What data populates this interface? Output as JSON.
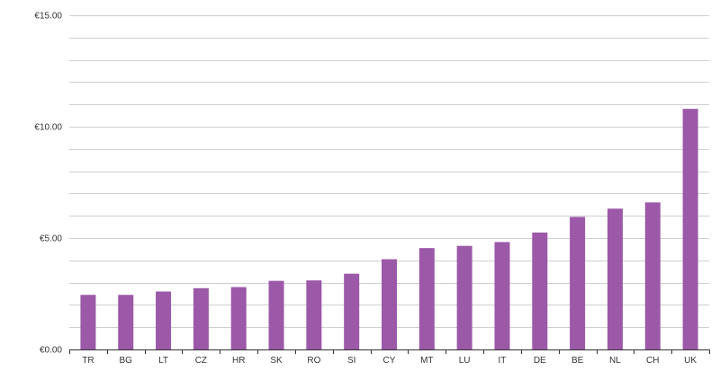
{
  "chart_data": {
    "type": "bar",
    "categories": [
      "TR",
      "BG",
      "LT",
      "CZ",
      "HR",
      "SK",
      "RO",
      "SI",
      "CY",
      "MT",
      "LU",
      "IT",
      "DE",
      "BE",
      "NL",
      "CH",
      "UK"
    ],
    "series": [
      {
        "values": [
          2.45,
          2.45,
          2.6,
          2.75,
          2.8,
          3.08,
          3.1,
          3.4,
          4.05,
          4.55,
          4.65,
          4.82,
          5.25,
          5.95,
          6.32,
          6.6,
          10.8
        ],
        "color": "#9b59a8"
      }
    ],
    "y_tick_labels": [
      "€0.00",
      "€5.00",
      "€10.00",
      "€15.00"
    ],
    "y_tick_values": [
      0,
      5,
      10,
      15
    ],
    "ylim": [
      0,
      15
    ],
    "minor_gridline_step": 1,
    "grid": true,
    "legend": "none",
    "title": "",
    "xlabel": "",
    "ylabel": ""
  }
}
